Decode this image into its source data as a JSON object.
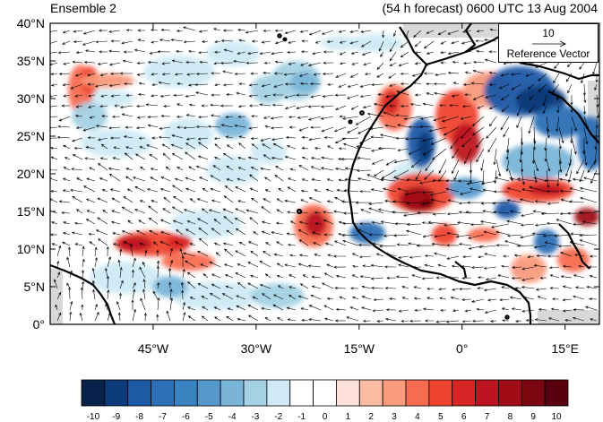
{
  "header": {
    "ensemble": "Ensemble 2",
    "forecast": "(54 h forecast) 0600 UTC 13 Aug 2004"
  },
  "map": {
    "lat_labels": [
      "40°N",
      "35°N",
      "30°N",
      "25°N",
      "20°N",
      "15°N",
      "10°N",
      "5°N",
      "0°"
    ],
    "lon_labels": [
      "45°W",
      "30°W",
      "15°W",
      "0°",
      "15°E"
    ],
    "lat_range": [
      0,
      40
    ],
    "lon_range": [
      -60,
      20
    ],
    "field_colors": "blue negative / red positive anomalies with wind vectors"
  },
  "reference_vector": {
    "magnitude": "10",
    "title": "Reference Vector"
  },
  "colorbar": {
    "labels": [
      "-10",
      "-9",
      "-8",
      "-7",
      "-6",
      "-5",
      "-4",
      "-3",
      "-2",
      "-1",
      "0",
      "1",
      "2",
      "3",
      "4",
      "5",
      "6",
      "7",
      "8",
      "9",
      "10"
    ],
    "colors": [
      "#08214a",
      "#0d3a78",
      "#1c5aa6",
      "#2c6fb4",
      "#3a82c0",
      "#5599cb",
      "#7ab5d8",
      "#a4d2e4",
      "#cfeaf5",
      "#ffffff",
      "#ffffff",
      "#fde0dc",
      "#fcbba3",
      "#fb9a7c",
      "#f76c50",
      "#ef4530",
      "#d72626",
      "#bc1420",
      "#a00d16",
      "#7a0610",
      "#590010"
    ]
  }
}
